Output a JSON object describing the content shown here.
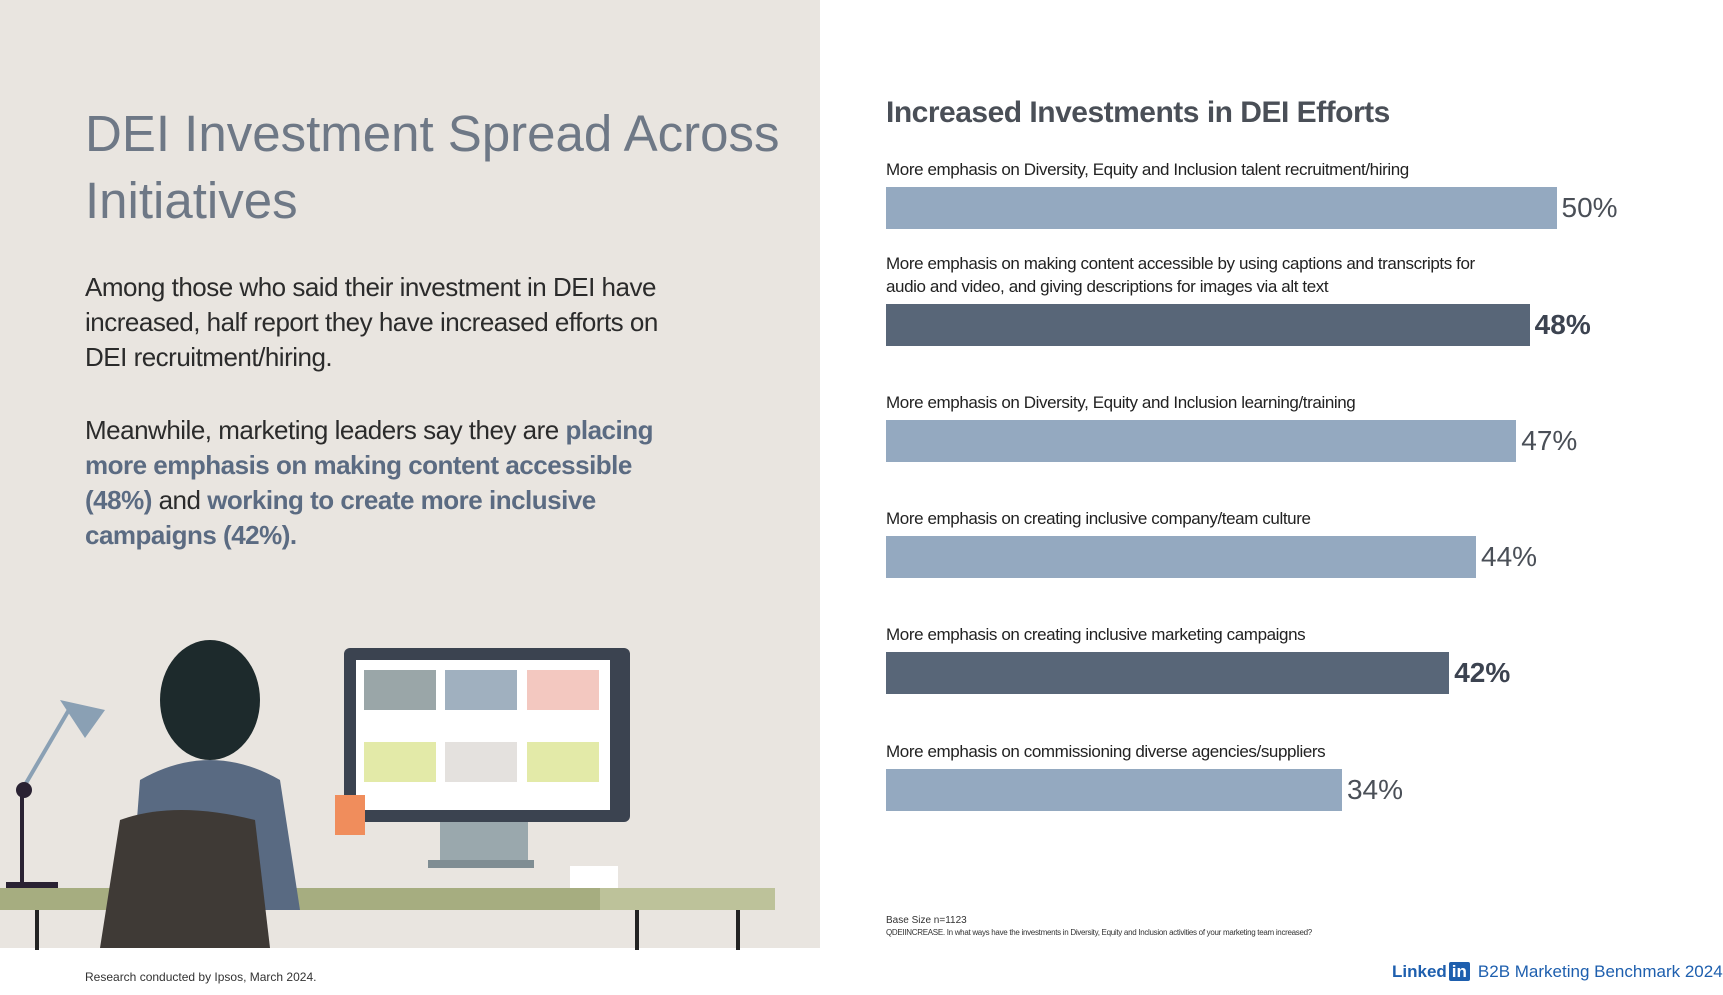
{
  "left": {
    "title": "DEI Investment Spread Across Initiatives",
    "paragraphs": [
      [
        {
          "text": "Among those who said their investment in DEI have increased, half report they have increased efforts on DEI recruitment/hiring.",
          "emphasis": false
        }
      ],
      [
        {
          "text": "Meanwhile, marketing leaders say they are ",
          "emphasis": false
        },
        {
          "text": "placing more emphasis on making content accessible (48%)",
          "emphasis": true
        },
        {
          "text": " and ",
          "emphasis": false
        },
        {
          "text": "working to create more inclusive campaigns (42%).",
          "emphasis": true
        }
      ]
    ],
    "footer": "Research conducted by Ipsos, March 2024."
  },
  "chart_data": {
    "type": "hbar",
    "title": "Increased Investments in DEI Efforts",
    "categories": [
      "More emphasis on Diversity, Equity and Inclusion talent recruitment/hiring",
      "More emphasis on making content accessible by using captions and transcripts for audio and video, and giving descriptions for images via alt text",
      "More emphasis on Diversity, Equity and Inclusion learning/training",
      "More emphasis on creating inclusive company/team culture",
      "More emphasis on creating inclusive marketing campaigns",
      "More emphasis on commissioning diverse agencies/suppliers"
    ],
    "values": [
      50,
      48,
      47,
      44,
      42,
      34
    ],
    "value_labels": [
      "50%",
      "48%",
      "47%",
      "44%",
      "42%",
      "34%"
    ],
    "colors": [
      "#94a9c0",
      "#586678",
      "#94a9c0",
      "#94a9c0",
      "#586678",
      "#94a9c0"
    ],
    "emphasized": [
      false,
      true,
      false,
      false,
      true,
      false
    ]
  },
  "notes": {
    "base": "Base Size n=1123",
    "question": "QDEIINCREASE. In what ways have the investments in Diversity, Equity and Inclusion activities of your marketing team increased?"
  },
  "brand": {
    "logo_text": "Linked",
    "logo_box": "in",
    "tagline": "B2B Marketing Benchmark",
    "year": "2024"
  }
}
